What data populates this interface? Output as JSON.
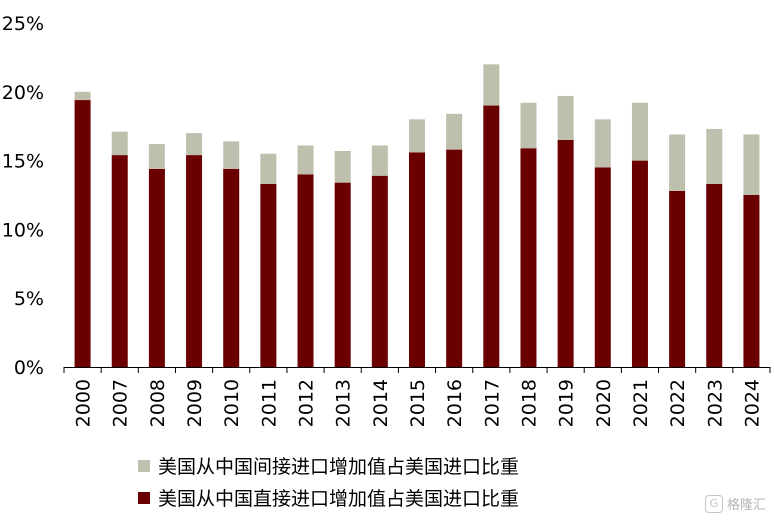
{
  "chart_data": {
    "type": "bar",
    "stacked": true,
    "categories": [
      "2000",
      "2007",
      "2008",
      "2009",
      "2010",
      "2011",
      "2012",
      "2013",
      "2014",
      "2015",
      "2016",
      "2017",
      "2018",
      "2019",
      "2020",
      "2021",
      "2022",
      "2023",
      "2024"
    ],
    "series": [
      {
        "name": "美国从中国直接进口增加值占美国进口比重",
        "color": "#6b0000",
        "values": [
          19.4,
          15.4,
          14.4,
          15.4,
          14.4,
          13.3,
          14.0,
          13.4,
          13.9,
          15.6,
          15.8,
          19.0,
          15.9,
          16.5,
          14.5,
          15.0,
          12.8,
          13.3,
          12.5
        ]
      },
      {
        "name": "美国从中国间接进口增加值占美国进口比重",
        "color": "#bfbfae",
        "values": [
          0.6,
          1.7,
          1.8,
          1.6,
          2.0,
          2.2,
          2.1,
          2.3,
          2.2,
          2.4,
          2.6,
          3.0,
          3.3,
          3.2,
          3.5,
          4.2,
          4.1,
          4.0,
          4.4
        ]
      }
    ],
    "yticks": [
      "0%",
      "5%",
      "10%",
      "15%",
      "20%",
      "25%"
    ],
    "ylim": [
      0,
      25
    ],
    "legend_position": "bottom"
  },
  "legend": {
    "indirect_label": "美国从中国间接进口增加值占美国进口比重",
    "direct_label": "美国从中国直接进口增加值占美国进口比重"
  },
  "watermark": {
    "text": "格隆汇",
    "icon": "g-logo-icon"
  }
}
